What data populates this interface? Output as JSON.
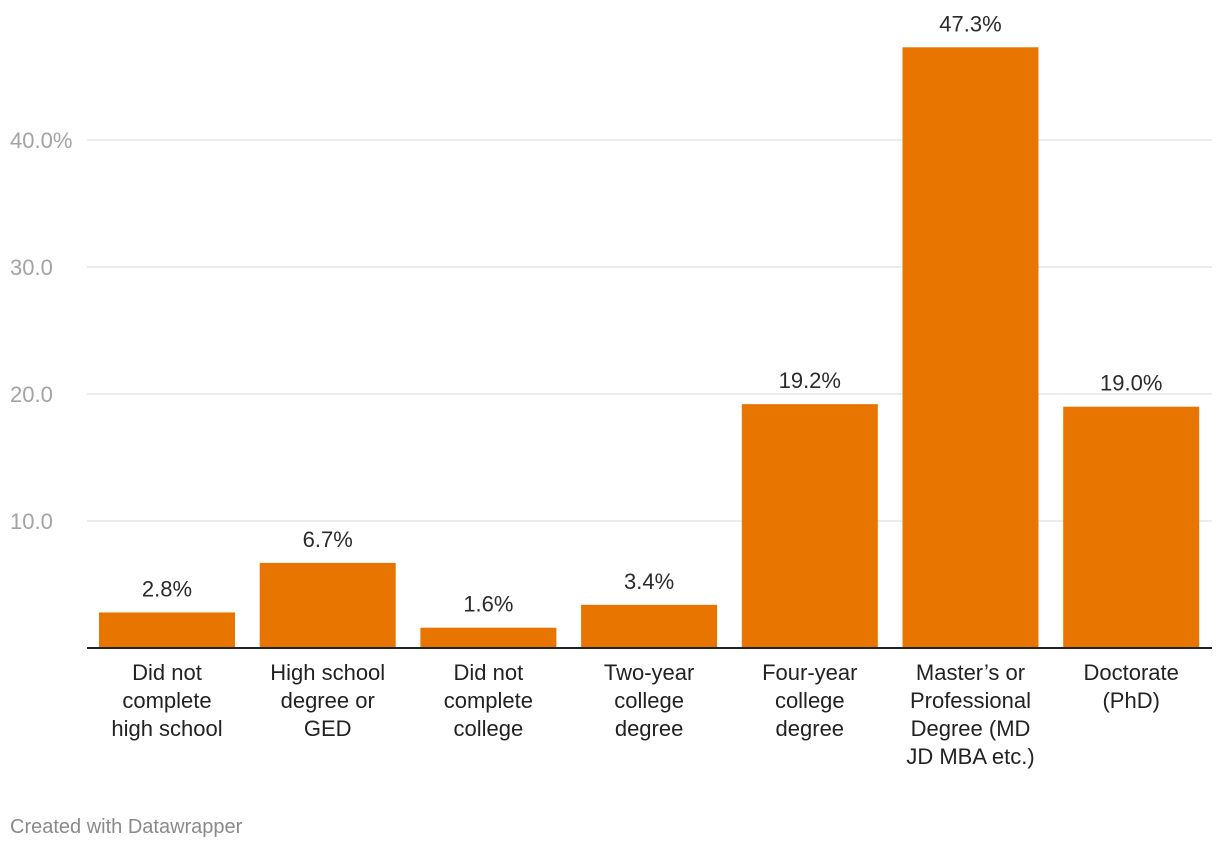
{
  "chart_data": {
    "type": "bar",
    "title": "",
    "xlabel": "",
    "ylabel": "",
    "ylim": [
      0,
      48
    ],
    "grid": true,
    "yticks": [
      {
        "value": 10,
        "label": "10.0"
      },
      {
        "value": 20,
        "label": "20.0"
      },
      {
        "value": 30,
        "label": "30.0"
      },
      {
        "value": 40,
        "label": "40.0%"
      }
    ],
    "categories": [
      [
        "Did not",
        "complete",
        "high school"
      ],
      [
        "High school",
        "degree or",
        "GED"
      ],
      [
        "Did not",
        "complete",
        "college"
      ],
      [
        "Two-year",
        "college",
        "degree"
      ],
      [
        "Four-year",
        "college",
        "degree"
      ],
      [
        "Master’s or",
        "Professional",
        "Degree (MD",
        "JD MBA etc.)"
      ],
      [
        "Doctorate",
        "(PhD)"
      ]
    ],
    "values": [
      2.8,
      6.7,
      1.6,
      3.4,
      19.2,
      47.3,
      19.0
    ],
    "value_labels": [
      "2.8%",
      "6.7%",
      "1.6%",
      "3.4%",
      "19.2%",
      "47.3%",
      "19.0%"
    ],
    "bar_color": "#e87500"
  },
  "footer": {
    "credit": "Created with Datawrapper"
  }
}
